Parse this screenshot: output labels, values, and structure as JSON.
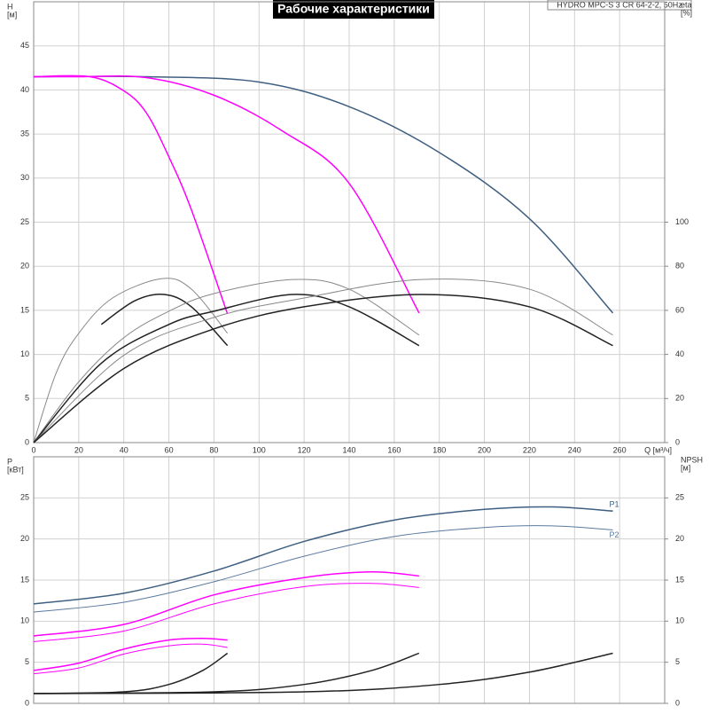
{
  "header": {
    "title": "Рабочие характеристики",
    "model": "HYDRO MPC-S 3 CR 64-2-2, 50Hz"
  },
  "chart_data": [
    {
      "type": "line",
      "ylabel": [
        "H",
        "[м]"
      ],
      "y2label": [
        "eta",
        "[%]"
      ],
      "xlabel": "Q [м³/ч]",
      "xlim": [
        0,
        280
      ],
      "xticks": [
        0,
        20,
        40,
        60,
        80,
        100,
        120,
        140,
        160,
        180,
        200,
        220,
        240,
        260
      ],
      "ylim": [
        0,
        50
      ],
      "yticks": [
        0,
        5,
        10,
        15,
        20,
        25,
        30,
        35,
        40,
        45
      ],
      "y2lim": [
        0,
        200
      ],
      "y2ticks": [
        0,
        20,
        40,
        60,
        80,
        100
      ],
      "grid": true,
      "series": [
        {
          "color": "#3f5f80",
          "width": 1.5,
          "x": [
            0,
            50,
            100,
            140,
            180,
            220,
            257
          ],
          "values": [
            41.5,
            41.5,
            40.9,
            38.1,
            32.9,
            25.4,
            14.7
          ]
        },
        {
          "color": "#ff00ff",
          "width": 1.5,
          "x": [
            0,
            20,
            50,
            80,
            110,
            140,
            171
          ],
          "values": [
            41.5,
            41.5,
            41.4,
            39.4,
            35.4,
            29.4,
            14.7
          ]
        },
        {
          "color": "#ff00ff",
          "width": 1.5,
          "x": [
            0,
            25,
            40,
            50,
            60,
            70,
            86
          ],
          "values": [
            41.5,
            41.5,
            39.9,
            37.4,
            32.4,
            26.4,
            14.6
          ]
        },
        {
          "axis": "y2",
          "color": "#888888",
          "width": 1,
          "x": [
            0,
            10,
            20,
            35,
            57,
            70,
            86
          ],
          "values": [
            0,
            31.6,
            49.6,
            65.6,
            74.4,
            69.6,
            49.6
          ]
        },
        {
          "axis": "y2",
          "color": "#222222",
          "width": 1.5,
          "x": [
            30,
            45,
            58,
            70,
            86
          ],
          "values": [
            53.6,
            64.4,
            67.2,
            61.6,
            44
          ]
        },
        {
          "axis": "y2",
          "color": "#888888",
          "width": 1,
          "x": [
            0,
            20,
            40,
            60,
            80,
            115,
            140,
            171
          ],
          "values": [
            0,
            27.6,
            47.6,
            59.6,
            67.6,
            74,
            69.6,
            48.8
          ]
        },
        {
          "axis": "y2",
          "color": "#222222",
          "width": 1.5,
          "x": [
            0,
            30,
            60,
            80,
            115,
            140,
            171
          ],
          "values": [
            0,
            36,
            53.6,
            59.6,
            67.2,
            61.6,
            44
          ]
        },
        {
          "axis": "y2",
          "color": "#888888",
          "width": 1,
          "x": [
            0,
            40,
            80,
            120,
            172,
            220,
            257
          ],
          "values": [
            0,
            39.6,
            56.8,
            65.6,
            74,
            69.6,
            48.8
          ]
        },
        {
          "axis": "y2",
          "color": "#222222",
          "width": 1.5,
          "x": [
            0,
            40,
            80,
            120,
            172,
            220,
            257
          ],
          "values": [
            0,
            33.6,
            51.6,
            61.6,
            67.2,
            61.6,
            44
          ]
        }
      ]
    },
    {
      "type": "line",
      "ylabel": [
        "P",
        "[кВт]"
      ],
      "y2label": [
        "NPSH",
        "[м]"
      ],
      "xlim": [
        0,
        280
      ],
      "xticks": [
        0,
        20,
        40,
        60,
        80,
        100,
        120,
        140,
        160,
        180,
        200,
        220,
        240,
        260
      ],
      "ylim": [
        0,
        30
      ],
      "yticks": [
        0,
        5,
        10,
        15,
        20,
        25
      ],
      "y2lim": [
        0,
        30
      ],
      "y2ticks": [
        0,
        5,
        10,
        15,
        20,
        25
      ],
      "grid": true,
      "series": [
        {
          "name": "P1",
          "color": "#3f5f80",
          "width": 1.5,
          "x": [
            0,
            40,
            80,
            120,
            160,
            200,
            230,
            257
          ],
          "values": [
            12.1,
            13.4,
            16.1,
            19.7,
            22.3,
            23.6,
            23.9,
            23.4
          ]
        },
        {
          "name": "P2",
          "color": "#5a7aa0",
          "width": 1,
          "x": [
            0,
            40,
            80,
            120,
            160,
            200,
            230,
            257
          ],
          "values": [
            11.1,
            12.3,
            14.8,
            17.9,
            20.3,
            21.4,
            21.6,
            21.1
          ]
        },
        {
          "color": "#ff00ff",
          "width": 1.5,
          "x": [
            0,
            40,
            80,
            120,
            150,
            171
          ],
          "values": [
            8.2,
            9.6,
            13.2,
            15.3,
            16,
            15.5
          ]
        },
        {
          "color": "#ff00ff",
          "width": 1,
          "x": [
            0,
            40,
            80,
            120,
            150,
            171
          ],
          "values": [
            7.5,
            8.8,
            12.1,
            14.2,
            14.6,
            14.1
          ]
        },
        {
          "color": "#ff00ff",
          "width": 1.5,
          "x": [
            0,
            20,
            40,
            60,
            75,
            86
          ],
          "values": [
            4,
            4.9,
            6.6,
            7.7,
            7.9,
            7.7
          ]
        },
        {
          "color": "#ff00ff",
          "width": 1,
          "x": [
            0,
            20,
            40,
            60,
            75,
            86
          ],
          "values": [
            3.6,
            4.3,
            6,
            7,
            7.2,
            6.8
          ]
        },
        {
          "axis": "y2",
          "color": "#222222",
          "width": 1.5,
          "x": [
            0,
            40,
            60,
            75,
            86
          ],
          "values": [
            1.2,
            1.4,
            2.3,
            4,
            6.1
          ]
        },
        {
          "axis": "y2",
          "color": "#222222",
          "width": 1.5,
          "x": [
            0,
            80,
            120,
            150,
            171
          ],
          "values": [
            1.2,
            1.4,
            2.3,
            4,
            6.1
          ]
        },
        {
          "axis": "y2",
          "color": "#222222",
          "width": 1.5,
          "x": [
            0,
            120,
            180,
            220,
            257
          ],
          "values": [
            1.2,
            1.4,
            2.3,
            3.8,
            6.1
          ]
        }
      ]
    }
  ]
}
